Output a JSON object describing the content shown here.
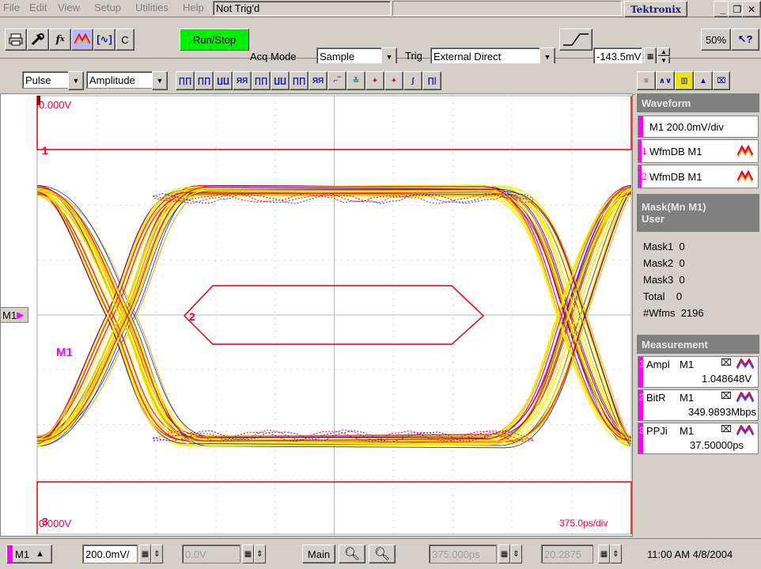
{
  "menubar": {
    "items": [
      "File",
      "Edit",
      "View",
      "Setup",
      "Utilities",
      "Help"
    ],
    "status": "Not Trig'd",
    "brand": "Tektronix"
  },
  "window_controls": {
    "minimize": "_",
    "restore": "❐",
    "close": "✕"
  },
  "toolbar": {
    "c_label": "C",
    "run_stop": "Run/Stop",
    "acq_mode_label": "Acq Mode",
    "acq_mode_value": "Sample",
    "trig_label": "Trig",
    "trig_value": "External Direct",
    "trig_level": "-143.5mV",
    "zoom_percent": "50%"
  },
  "measure_bar": {
    "category": "Pulse",
    "type": "Amplitude"
  },
  "scope": {
    "top_level": "0.000V",
    "bottom_level": "0.000V",
    "timebase": "375.0ps/div",
    "channel_label": "M1",
    "marker_1": "1",
    "marker_2": "2",
    "marker_3": "3",
    "ref_marker": "M1"
  },
  "sidebar": {
    "waveform_header": "Waveform",
    "channel_setting": "M1 200.0mV/div",
    "wfm_items": [
      {
        "index": "1",
        "label": "WfmDB M1"
      },
      {
        "index": "2",
        "label": "WfmDB M1"
      }
    ],
    "mask_header_1": "Mask(Mn M1)",
    "mask_header_2": "User",
    "mask_stats": [
      {
        "label": "Mask1",
        "value": "0"
      },
      {
        "label": "Mask2",
        "value": "0"
      },
      {
        "label": "Mask3",
        "value": "0"
      },
      {
        "label": "Total",
        "value": "0"
      },
      {
        "label": "#Wfms",
        "value": "2196"
      }
    ],
    "measurement_header": "Measurement",
    "measurements": [
      {
        "index": "1",
        "name": "Ampl",
        "source": "M1",
        "value": "1.048648V"
      },
      {
        "index": "2",
        "name": "BitR",
        "source": "M1",
        "value": "349.9893Mbps"
      },
      {
        "index": "3",
        "name": "PPJi",
        "source": "M1",
        "value": "37.50000ps"
      }
    ]
  },
  "bottombar": {
    "channel": "M1",
    "scale": "200.0mV/",
    "offset": "0.0V",
    "main_label": "Main",
    "horiz_pos": "375.000ps",
    "horiz_scale": "20.2875",
    "clock": "11:00 AM 4/8/2004"
  },
  "colors": {
    "background": "#d4d0c8",
    "run_stop": "#00ee00",
    "mask": "#e00000",
    "trace_yellow": "#f6f000",
    "trace_red": "#e8003a",
    "pink_channel": "#ff00ff",
    "side_header": "#808080"
  }
}
